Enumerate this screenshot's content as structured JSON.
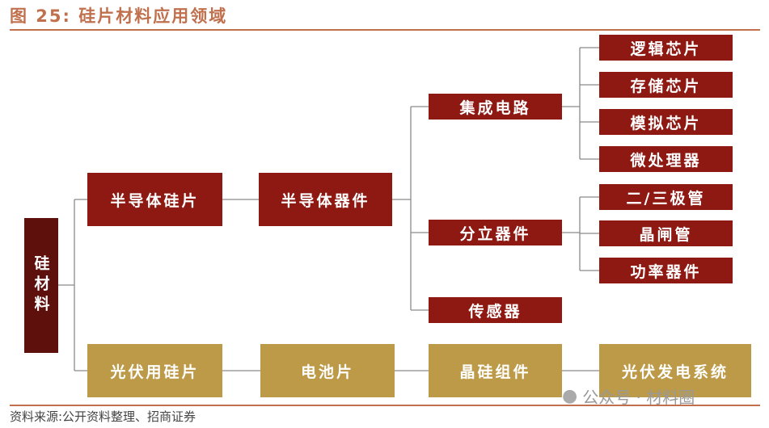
{
  "title": "图 25:  硅片材料应用领域",
  "root": "硅材料",
  "level1": [
    "半导体硅片",
    "光伏用硅片"
  ],
  "level2": [
    "半导体器件",
    "电池片"
  ],
  "level3": [
    "集成电路",
    "分立器件",
    "传感器",
    "晶硅组件"
  ],
  "level4": [
    "逻辑芯片",
    "存储芯片",
    "模拟芯片",
    "微处理器",
    "二/三极管",
    "晶闸管",
    "功率器件",
    "光伏发电系统"
  ],
  "source": "资料来源:公开资料整理、招商证券",
  "watermark": "公众号 · 材料圈",
  "colors": {
    "title": "#C0704D",
    "semiconductor": "#8E1913",
    "root": "#5E100C",
    "photovoltaic": "#BC9A48",
    "line": "#8A8A8A"
  }
}
